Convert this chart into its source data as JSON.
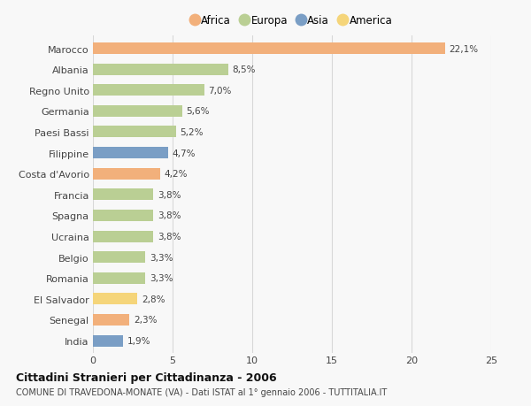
{
  "countries": [
    "Marocco",
    "Albania",
    "Regno Unito",
    "Germania",
    "Paesi Bassi",
    "Filippine",
    "Costa d'Avorio",
    "Francia",
    "Spagna",
    "Ucraina",
    "Belgio",
    "Romania",
    "El Salvador",
    "Senegal",
    "India"
  ],
  "values": [
    22.1,
    8.5,
    7.0,
    5.6,
    5.2,
    4.7,
    4.2,
    3.8,
    3.8,
    3.8,
    3.3,
    3.3,
    2.8,
    2.3,
    1.9
  ],
  "labels": [
    "22,1%",
    "8,5%",
    "7,0%",
    "5,6%",
    "5,2%",
    "4,7%",
    "4,2%",
    "3,8%",
    "3,8%",
    "3,8%",
    "3,3%",
    "3,3%",
    "2,8%",
    "2,3%",
    "1,9%"
  ],
  "continents": [
    "Africa",
    "Europa",
    "Europa",
    "Europa",
    "Europa",
    "Asia",
    "Africa",
    "Europa",
    "Europa",
    "Europa",
    "Europa",
    "Europa",
    "America",
    "Africa",
    "Asia"
  ],
  "colors": {
    "Africa": "#F2B07B",
    "Europa": "#BACF94",
    "Asia": "#7A9EC5",
    "America": "#F5D57A"
  },
  "legend_order": [
    "Africa",
    "Europa",
    "Asia",
    "America"
  ],
  "xlim": [
    0,
    25
  ],
  "xticks": [
    0,
    5,
    10,
    15,
    20,
    25
  ],
  "title": "Cittadini Stranieri per Cittadinanza - 2006",
  "subtitle": "COMUNE DI TRAVEDONA-MONATE (VA) - Dati ISTAT al 1° gennaio 2006 - TUTTITALIA.IT",
  "background_color": "#f8f8f8",
  "grid_color": "#d8d8d8",
  "bar_height": 0.55
}
